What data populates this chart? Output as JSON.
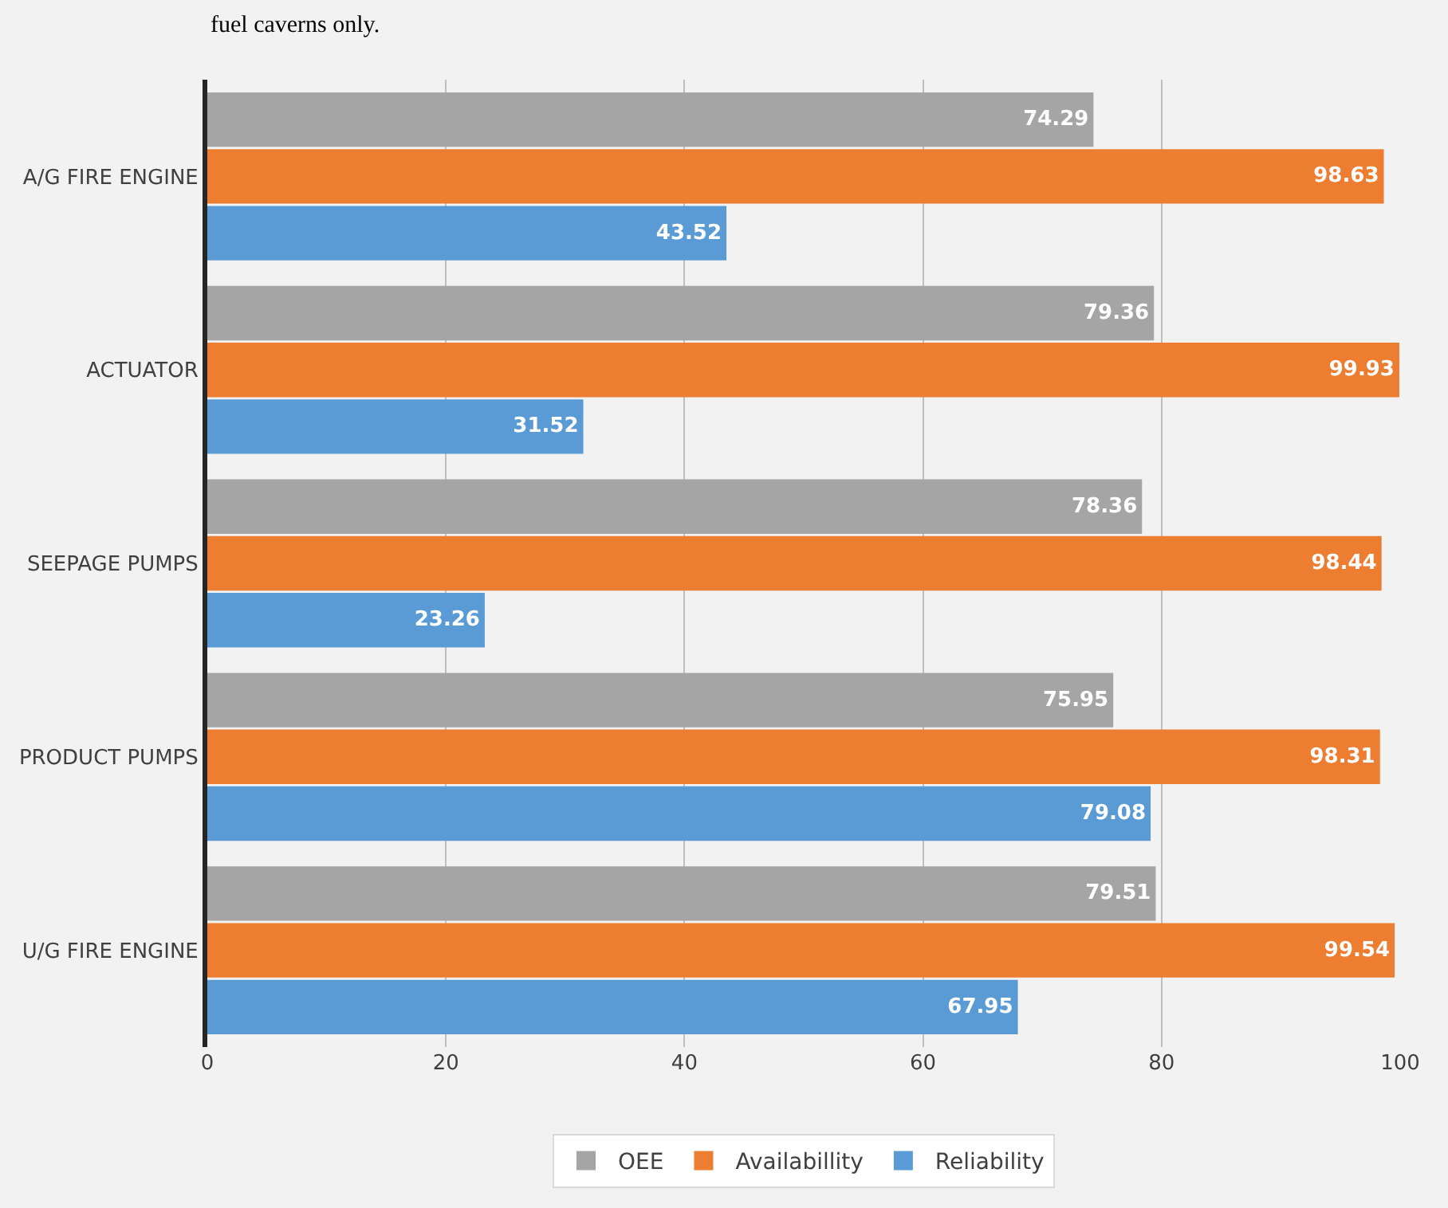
{
  "chart_data": {
    "type": "bar",
    "orientation": "horizontal",
    "categories": [
      "A/G FIRE ENGINE",
      "ACTUATOR",
      "SEEPAGE PUMPS",
      "PRODUCT PUMPS",
      "U/G FIRE ENGINE"
    ],
    "series": [
      {
        "name": "OEE",
        "color": "#a5a5a5",
        "values": [
          74.29,
          79.36,
          78.36,
          75.95,
          79.51
        ]
      },
      {
        "name": "Availabillity",
        "color": "#ed7d31",
        "values": [
          98.63,
          99.93,
          98.44,
          98.31,
          99.54
        ]
      },
      {
        "name": "Reliability",
        "color": "#5b9bd5",
        "values": [
          43.52,
          31.52,
          23.26,
          79.08,
          67.95
        ]
      }
    ],
    "xlim": [
      0,
      100
    ],
    "xticks": [
      0,
      20,
      40,
      60,
      80,
      100
    ],
    "grid": "x",
    "legend": "bottom",
    "data_labels": true,
    "annotations": [
      "fuel caverns only."
    ]
  }
}
